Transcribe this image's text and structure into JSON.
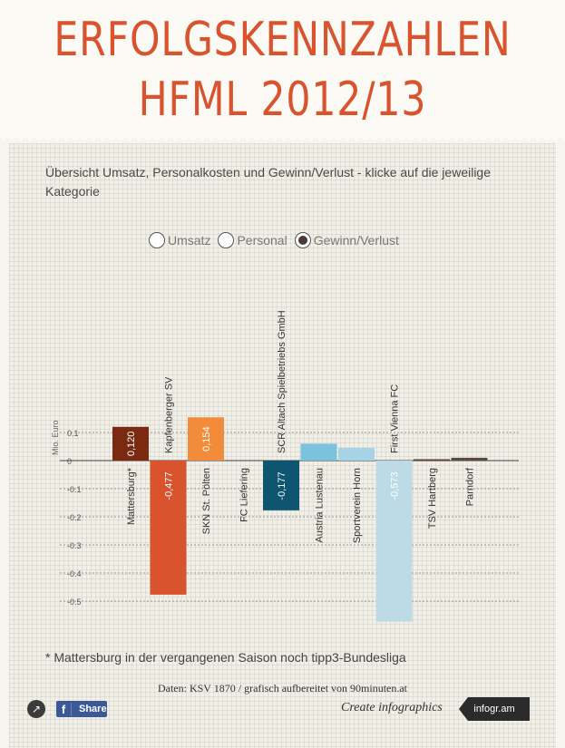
{
  "header": {
    "title_line1": "ERFOLGSKENNZAHLEN",
    "title_line2": "HFML 2012/13"
  },
  "subtitle": "Übersicht Umsatz, Personalkosten und Gewinn/Verlust - klicke auf die jeweilige Kategorie",
  "radios": [
    {
      "label": "Umsatz",
      "checked": false
    },
    {
      "label": "Personal",
      "checked": false
    },
    {
      "label": "Gewinn/Verlust",
      "checked": true
    }
  ],
  "chart_data": {
    "type": "bar",
    "ylabel": "Mio. Euro",
    "ylim": [
      -0.55,
      0.15
    ],
    "y_ticks": [
      0.1,
      0,
      -0.1,
      -0.2,
      -0.3,
      -0.4,
      -0.5
    ],
    "y_tick_labels": [
      "0.1",
      "0",
      "-0.1",
      "-0.2",
      "-0.3",
      "-0.4",
      "-0.5"
    ],
    "grid": true,
    "categories": [
      "Mattersburg*",
      "Kapfenberger SV",
      "SKN St. Pölten",
      "FC Liefering",
      "SCR Altach Spielbetriebs GmbH",
      "Austria Lustenau",
      "Sportverein Horn",
      "First Vienna FC",
      "TSV Hartberg",
      "Parndorf"
    ],
    "values": [
      0.12,
      -0.477,
      0.154,
      0.0,
      -0.177,
      0.06,
      0.045,
      -0.573,
      0.005,
      0.01
    ],
    "value_labels": [
      "0,120",
      "-0,477",
      "0,154",
      "",
      "-0,177",
      "",
      "",
      "-0,573",
      "",
      ""
    ],
    "colors": [
      "#7b2a12",
      "#d8532e",
      "#f28c3a",
      "#f28c3a",
      "#0e5670",
      "#7cc2dd",
      "#a7d3e6",
      "#bddbe6",
      "#5a4a43",
      "#5a4a43"
    ]
  },
  "footnote": "* Mattersburg in der vergangenen Saison noch tipp3-Bundesliga",
  "source": "Daten: KSV 1870 / grafisch aufbereitet von 90minuten.at",
  "footer": {
    "share_label": "Share",
    "fb_letter": "f",
    "create_text": "Create infographics",
    "brand": "infogr.am"
  }
}
